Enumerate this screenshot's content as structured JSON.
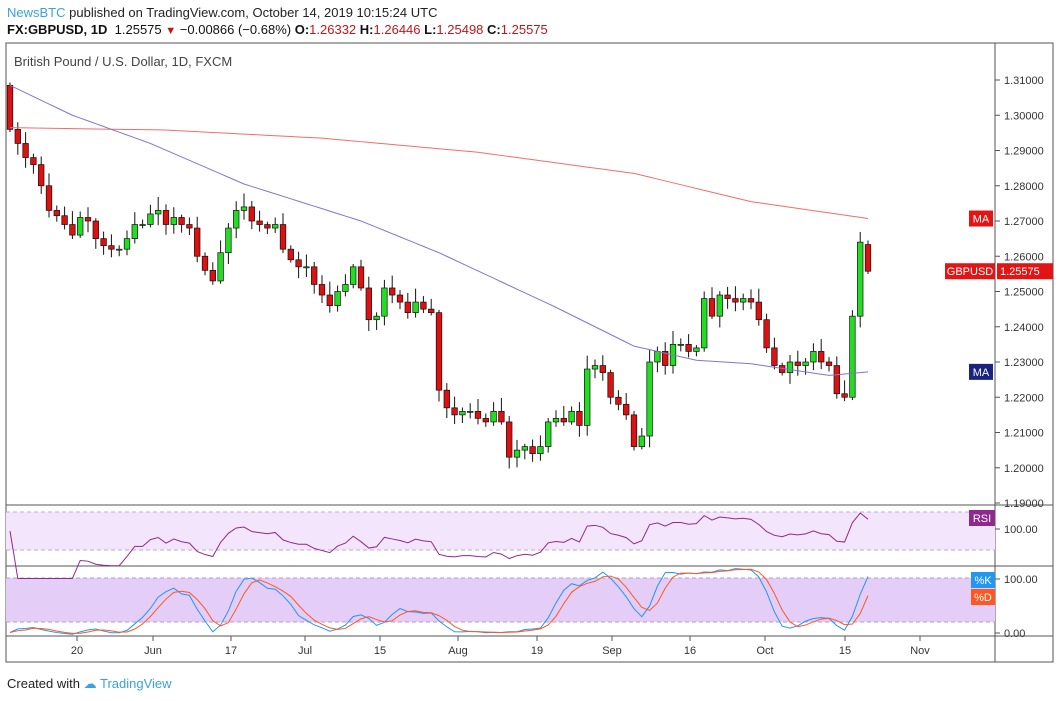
{
  "header": {
    "publisher": "NewsBTC",
    "published_text": "published on TradingView.com, October 14, 2019 10:15:24 UTC",
    "symbol": "FX:GBPUSD, 1D",
    "last": "1.25575",
    "change": "−0.00866 (−0.68%)",
    "o_label": "O:",
    "o": "1.26332",
    "h_label": "H:",
    "h": "1.26446",
    "l_label": "L:",
    "l": "1.25498",
    "c_label": "C:",
    "c": "1.25575"
  },
  "footer": {
    "created_with": "Created with",
    "brand": "TradingView"
  },
  "colors": {
    "up": "#22dd22",
    "down": "#dd1111",
    "ma200": "#f26d6d",
    "ma50": "#7d78d0",
    "rsi": "#8e2a8e",
    "k": "#2196f3",
    "d": "#ff5722",
    "price_tag": "#e31414",
    "ma_tag_red": "#e31414",
    "ma_tag_blue": "#1a237e"
  },
  "chart_data": {
    "type": "candlestick",
    "title": "British Pound / U.S. Dollar, 1D, FXCM",
    "ylim": [
      1.19,
      1.31
    ],
    "yticks": [
      "1.31000",
      "1.30000",
      "1.29000",
      "1.28000",
      "1.27000",
      "1.26000",
      "1.25000",
      "1.24000",
      "1.23000",
      "1.22000",
      "1.21000",
      "1.20000",
      "1.19000"
    ],
    "xticks": [
      "20",
      "Jun",
      "17",
      "Jul",
      "15",
      "Aug",
      "19",
      "Sep",
      "16",
      "Oct",
      "15",
      "Nov"
    ],
    "first_open": 1.3085,
    "closes": [
      1.296,
      1.292,
      1.288,
      1.286,
      1.28,
      1.273,
      1.2715,
      1.269,
      1.266,
      1.271,
      1.27,
      1.265,
      1.263,
      1.262,
      1.262,
      1.265,
      1.269,
      1.269,
      1.272,
      1.273,
      1.269,
      1.271,
      1.269,
      1.268,
      1.26,
      1.256,
      1.253,
      1.261,
      1.268,
      1.273,
      1.274,
      1.27,
      1.269,
      1.268,
      1.269,
      1.262,
      1.259,
      1.257,
      1.257,
      1.252,
      1.249,
      1.246,
      1.25,
      1.252,
      1.257,
      1.251,
      1.242,
      1.243,
      1.251,
      1.249,
      1.247,
      1.244,
      1.247,
      1.245,
      1.244,
      1.222,
      1.217,
      1.215,
      1.216,
      1.216,
      1.214,
      1.213,
      1.216,
      1.213,
      1.203,
      1.205,
      1.206,
      1.204,
      1.206,
      1.213,
      1.214,
      1.213,
      1.216,
      1.212,
      1.228,
      1.229,
      1.227,
      1.22,
      1.218,
      1.215,
      1.206,
      1.209,
      1.23,
      1.233,
      1.229,
      1.235,
      1.235,
      1.233,
      1.234,
      1.248,
      1.243,
      1.249,
      1.248,
      1.247,
      1.248,
      1.247,
      1.242,
      1.234,
      1.229,
      1.227,
      1.23,
      1.229,
      1.23,
      1.233,
      1.23,
      1.229,
      1.221,
      1.22,
      1.243,
      1.264,
      1.25575
    ],
    "last_ohlc": {
      "o": 1.26332,
      "h": 1.26446,
      "l": 1.25498,
      "c": 1.25575
    },
    "ma_slow": [
      [
        0,
        1.2965
      ],
      [
        20,
        1.2958
      ],
      [
        40,
        1.2935
      ],
      [
        60,
        1.2895
      ],
      [
        80,
        1.2835
      ],
      [
        95,
        1.2755
      ],
      [
        110,
        1.2707
      ]
    ],
    "ma_fast": [
      [
        0,
        1.3085
      ],
      [
        8,
        1.3
      ],
      [
        18,
        1.292
      ],
      [
        30,
        1.2805
      ],
      [
        45,
        1.27
      ],
      [
        55,
        1.261
      ],
      [
        70,
        1.2455
      ],
      [
        80,
        1.2345
      ],
      [
        88,
        1.2305
      ],
      [
        95,
        1.2295
      ],
      [
        105,
        1.2262
      ],
      [
        110,
        1.2272
      ]
    ],
    "price_tag": "GBPUSD",
    "price_value": "1.25575",
    "ma_label": "MA",
    "rsi_label": "RSI",
    "rsi_tick": "100.00",
    "stoch_k_label": "%K",
    "stoch_d_label": "%D",
    "stoch_ticks": [
      "100.00",
      "0.00"
    ]
  }
}
